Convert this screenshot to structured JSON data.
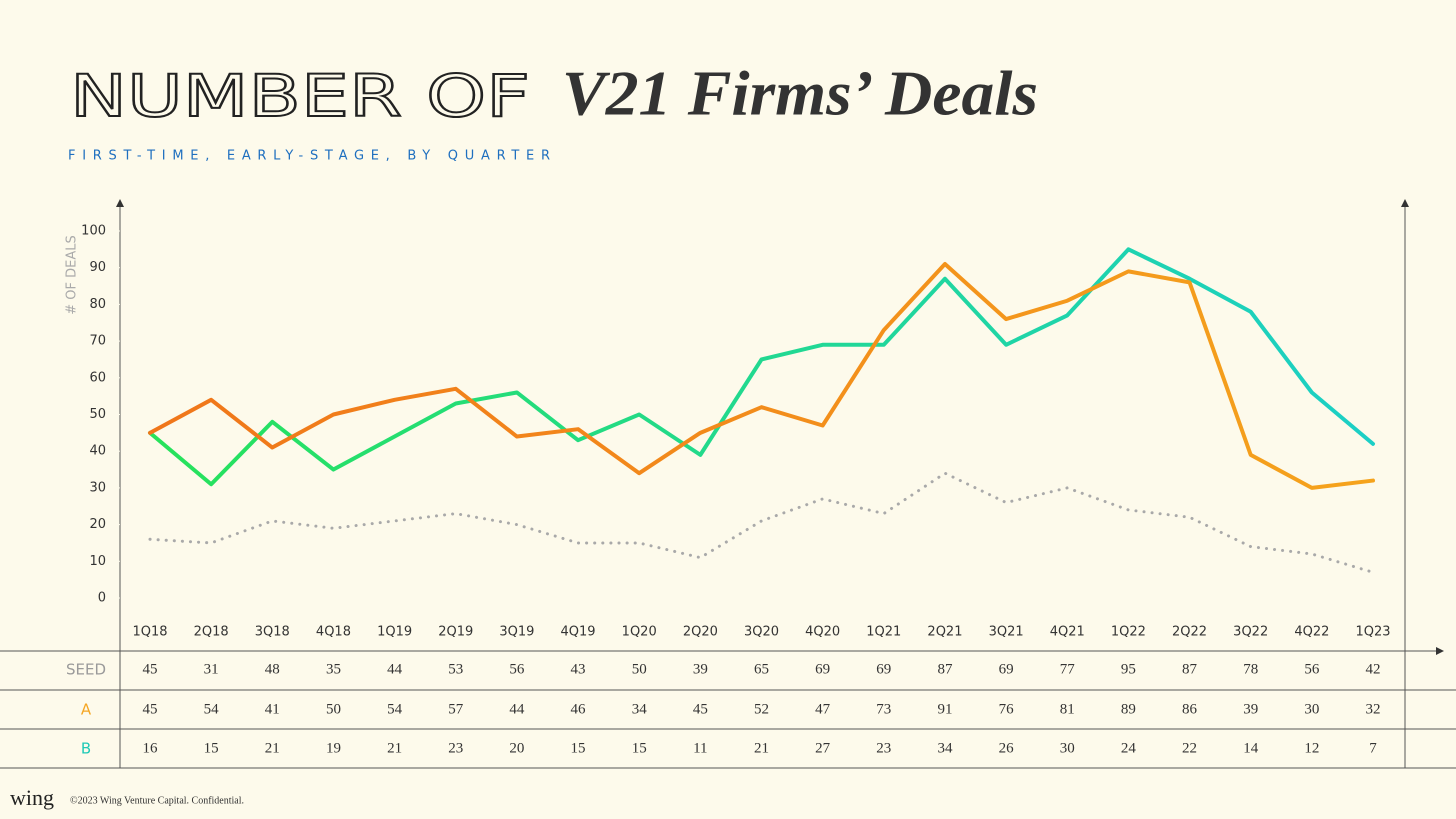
{
  "chart_data": {
    "type": "line",
    "title": "NUMBER OF",
    "title_emphasis": "V21 Firms’ Deals",
    "subtitle": "FIRST-TIME, EARLY-STAGE, BY QUARTER",
    "y_label": "# OF DEALS",
    "categories": [
      "1Q18",
      "2Q18",
      "3Q18",
      "4Q18",
      "1Q19",
      "2Q19",
      "3Q19",
      "4Q19",
      "1Q20",
      "2Q20",
      "3Q20",
      "4Q20",
      "1Q21",
      "2Q21",
      "3Q21",
      "4Q21",
      "1Q22",
      "2Q22",
      "3Q22",
      "4Q22",
      "1Q23"
    ],
    "ylim": [
      0,
      100
    ],
    "yticks": [
      0,
      10,
      20,
      30,
      40,
      50,
      60,
      70,
      80,
      90,
      100
    ],
    "series": [
      {
        "name": "SEED",
        "color": [
          "#27e25a",
          "#1ccfc6"
        ],
        "label_color": "#9a9a9a",
        "line_style": "solid",
        "values": [
          45,
          31,
          48,
          35,
          44,
          53,
          56,
          43,
          50,
          39,
          65,
          69,
          69,
          87,
          69,
          77,
          95,
          87,
          78,
          56,
          42
        ]
      },
      {
        "name": "A",
        "color": [
          "#f0761a",
          "#f5a31c"
        ],
        "label_color": "#f5a623",
        "line_style": "solid",
        "values": [
          45,
          54,
          41,
          50,
          54,
          57,
          44,
          46,
          34,
          45,
          52,
          47,
          73,
          91,
          76,
          81,
          89,
          86,
          39,
          30,
          32
        ]
      },
      {
        "name": "B",
        "color": "#a9a9a9",
        "label_color": "#1ec9b6",
        "line_style": "dotted",
        "values": [
          16,
          15,
          21,
          19,
          21,
          23,
          20,
          15,
          15,
          11,
          21,
          27,
          23,
          34,
          26,
          30,
          24,
          22,
          14,
          12,
          7
        ]
      }
    ]
  },
  "footer": {
    "logo": "wing",
    "text": "©2023 Wing Venture Capital. Confidential."
  }
}
